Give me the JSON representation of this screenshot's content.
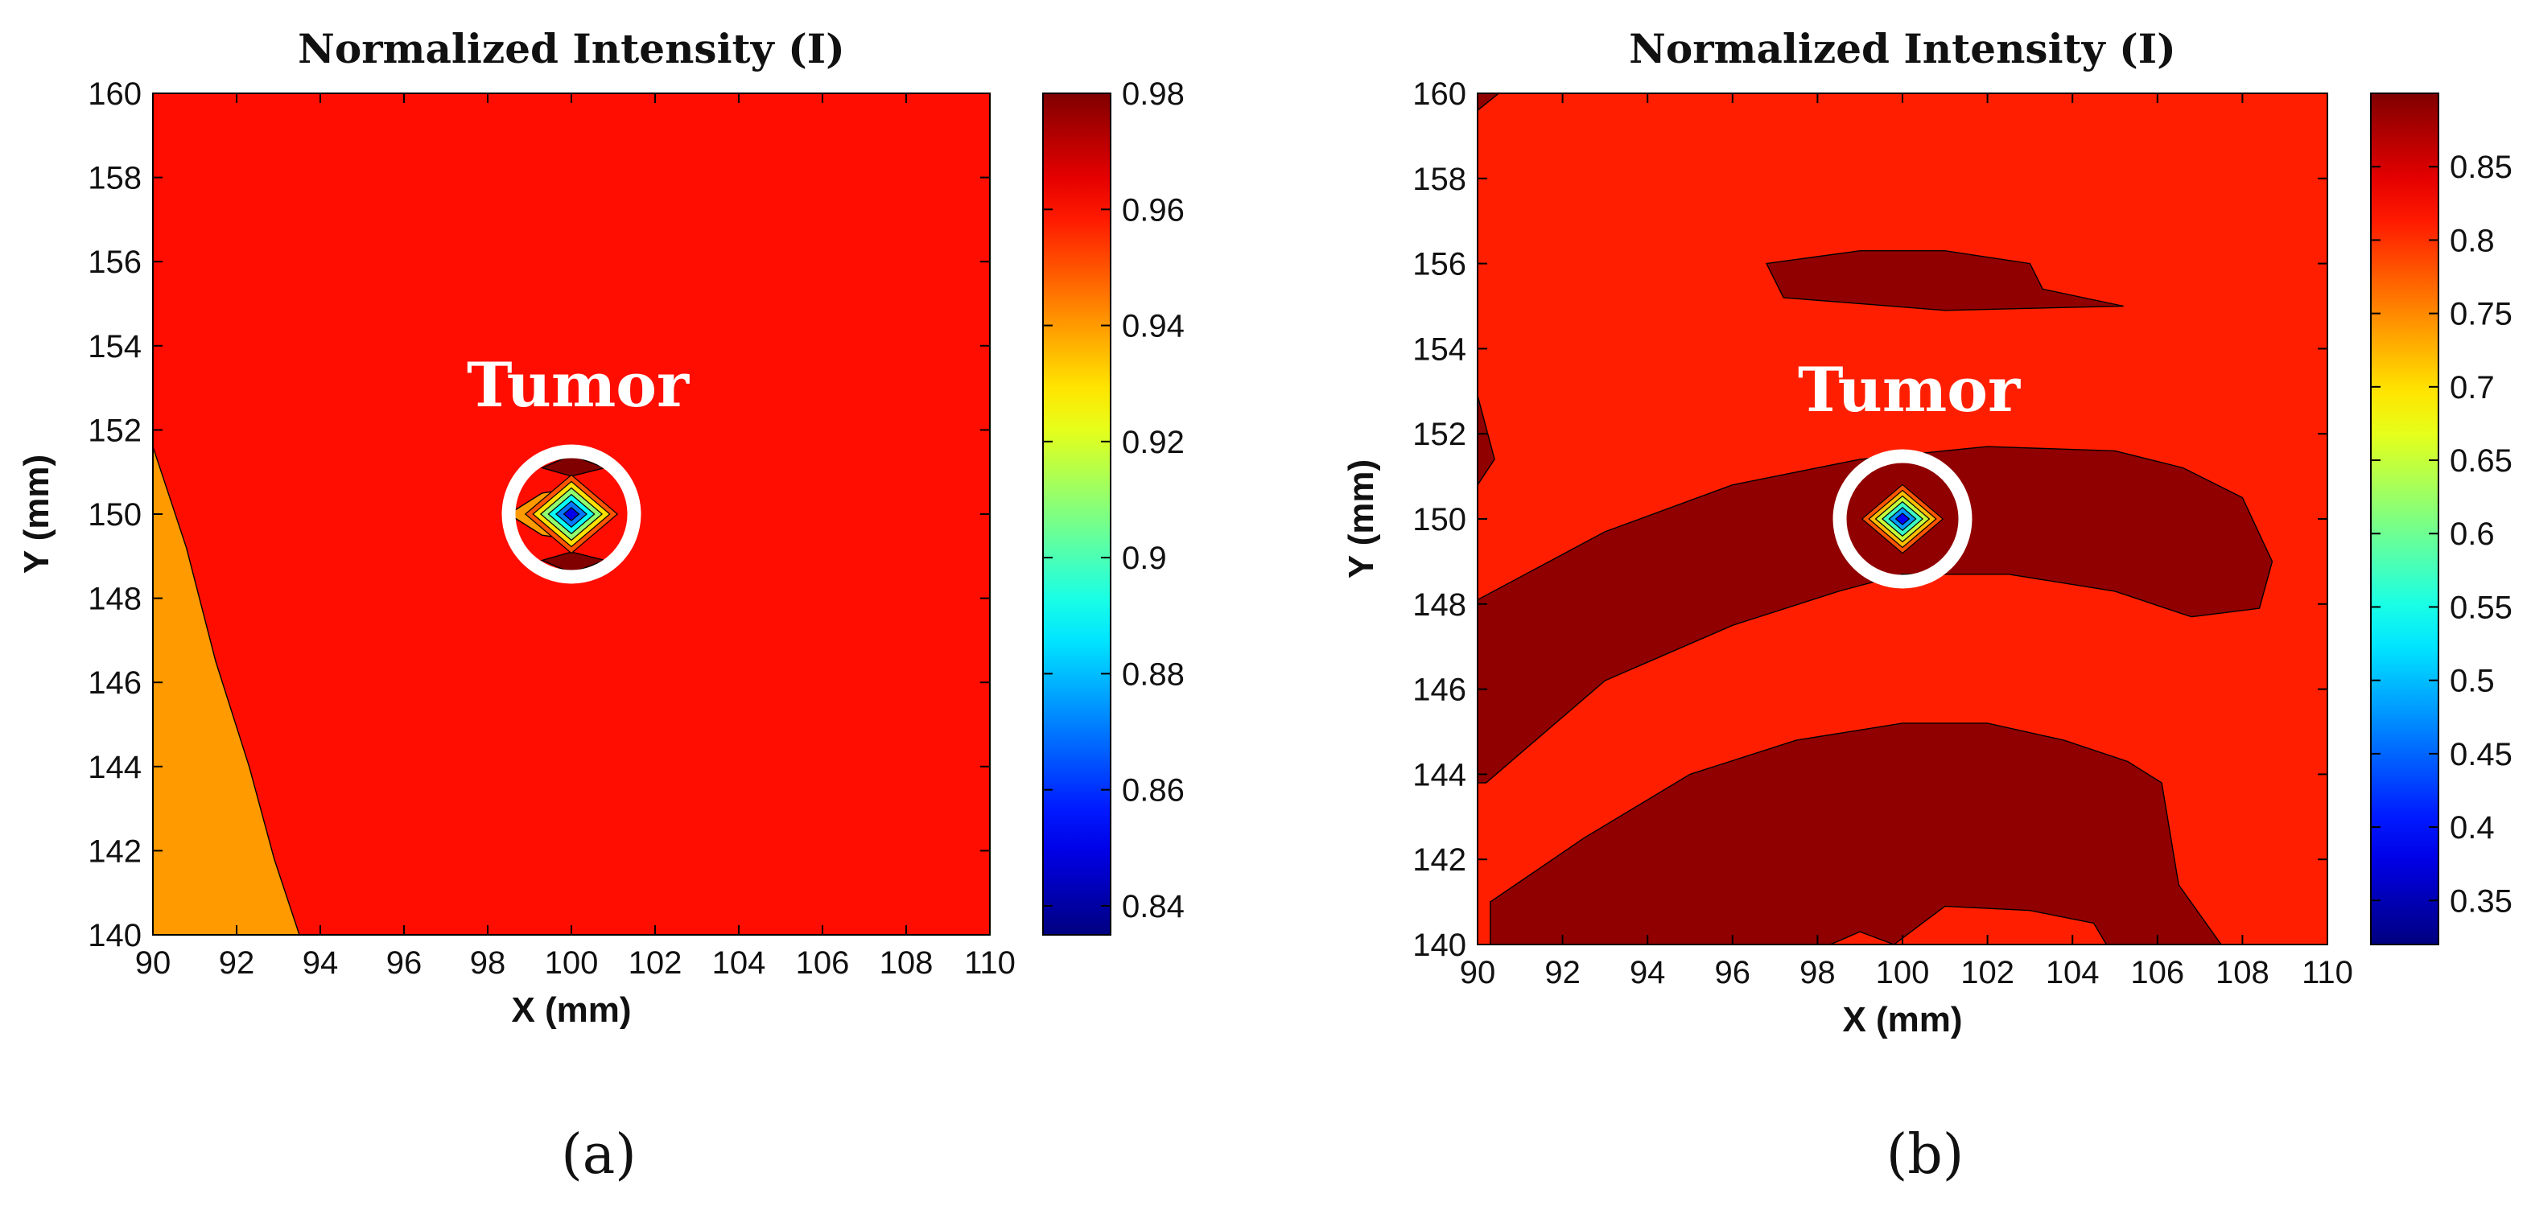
{
  "chart_data": [
    {
      "type": "heatmap",
      "panel": "a",
      "title": "Normalized Intensity (I)",
      "xlabel": "X (mm)",
      "ylabel": "Y (mm)",
      "xlim": [
        90,
        110
      ],
      "ylim": [
        140,
        160
      ],
      "xticks": [
        "90",
        "92",
        "94",
        "96",
        "98",
        "100",
        "102",
        "104",
        "106",
        "108",
        "110"
      ],
      "yticks": [
        "140",
        "142",
        "144",
        "146",
        "148",
        "150",
        "152",
        "154",
        "156",
        "158",
        "160"
      ],
      "colorbar": {
        "min": 0.835,
        "max": 0.98,
        "ticks": [
          "0.84",
          "0.86",
          "0.88",
          "0.9",
          "0.92",
          "0.94",
          "0.96",
          "0.98"
        ]
      },
      "background_level": 0.96,
      "regions": [
        {
          "name": "low-left-region",
          "level": 0.94,
          "points": [
            [
              90,
              151.6
            ],
            [
              90.8,
              149.2
            ],
            [
              91.5,
              146.5
            ],
            [
              92.3,
              144
            ],
            [
              92.9,
              141.8
            ],
            [
              93.5,
              140
            ],
            [
              90,
              140
            ]
          ]
        },
        {
          "name": "tumor-halo-left",
          "level": 0.94,
          "points": [
            [
              98.5,
              150
            ],
            [
              99.3,
              150.5
            ],
            [
              100,
              150.6
            ],
            [
              100,
              149.4
            ],
            [
              99.3,
              149.5
            ]
          ]
        },
        {
          "name": "tumor-top-lobe",
          "level": 0.98,
          "points": [
            [
              99.3,
              151.1
            ],
            [
              100,
              151.4
            ],
            [
              100.8,
              151.1
            ],
            [
              100,
              150.9
            ]
          ]
        },
        {
          "name": "tumor-bottom-lobe",
          "level": 0.98,
          "points": [
            [
              99.3,
              148.9
            ],
            [
              100,
              148.6
            ],
            [
              100.8,
              148.9
            ],
            [
              100,
              149.1
            ]
          ]
        }
      ],
      "tumor": {
        "x": 100,
        "y": 150,
        "label": "Tumor",
        "levels": [
          0.95,
          0.93,
          0.91,
          0.89,
          0.87,
          0.85
        ],
        "base_radius": 1.1
      },
      "caption": "(a)"
    },
    {
      "type": "heatmap",
      "panel": "b",
      "title": "Normalized Intensity (I)",
      "xlabel": "X (mm)",
      "ylabel": "Y (mm)",
      "xlim": [
        90,
        110
      ],
      "ylim": [
        140,
        160
      ],
      "xticks": [
        "90",
        "92",
        "94",
        "96",
        "98",
        "100",
        "102",
        "104",
        "106",
        "108",
        "110"
      ],
      "yticks": [
        "140",
        "142",
        "144",
        "146",
        "148",
        "150",
        "152",
        "154",
        "156",
        "158",
        "160"
      ],
      "colorbar": {
        "min": 0.32,
        "max": 0.9,
        "ticks": [
          "0.35",
          "0.4",
          "0.45",
          "0.5",
          "0.55",
          "0.6",
          "0.65",
          "0.7",
          "0.75",
          "0.8",
          "0.85"
        ]
      },
      "background_level": 0.81,
      "regions": [
        {
          "name": "upper-band",
          "level": 0.89,
          "points": [
            [
              96.8,
              156
            ],
            [
              99,
              156.3
            ],
            [
              101,
              156.3
            ],
            [
              103,
              156
            ],
            [
              103.3,
              155.4
            ],
            [
              105.2,
              155
            ],
            [
              101,
              154.9
            ],
            [
              97.2,
              155.2
            ]
          ]
        },
        {
          "name": "middle-band",
          "level": 0.89,
          "points": [
            [
              90,
              148.1
            ],
            [
              93,
              149.7
            ],
            [
              96,
              150.8
            ],
            [
              99,
              151.4
            ],
            [
              102,
              151.7
            ],
            [
              105,
              151.6
            ],
            [
              106.6,
              151.2
            ],
            [
              108,
              150.5
            ],
            [
              108.7,
              149
            ],
            [
              108.4,
              147.9
            ],
            [
              106.8,
              147.7
            ],
            [
              105,
              148.3
            ],
            [
              102.5,
              148.7
            ],
            [
              100,
              148.7
            ],
            [
              98.5,
              148.3
            ],
            [
              96,
              147.5
            ],
            [
              93,
              146.2
            ],
            [
              90.2,
              143.8
            ],
            [
              90,
              143.8
            ]
          ]
        },
        {
          "name": "lower-band",
          "level": 0.89,
          "points": [
            [
              90.3,
              141
            ],
            [
              92.5,
              142.5
            ],
            [
              95,
              144
            ],
            [
              97.5,
              144.8
            ],
            [
              100,
              145.2
            ],
            [
              102,
              145.2
            ],
            [
              103.8,
              144.8
            ],
            [
              105.3,
              144.3
            ],
            [
              106.1,
              143.8
            ],
            [
              106.5,
              141.4
            ],
            [
              107.5,
              140
            ],
            [
              104.8,
              140
            ],
            [
              104.5,
              140.5
            ],
            [
              103,
              140.8
            ],
            [
              101,
              140.9
            ],
            [
              99.8,
              140
            ],
            [
              99,
              140.3
            ],
            [
              98.3,
              140
            ],
            [
              90.3,
              140
            ]
          ]
        },
        {
          "name": "left-edge-sliver",
          "level": 0.89,
          "points": [
            [
              90,
              152.9
            ],
            [
              90.4,
              151.4
            ],
            [
              90,
              150.8
            ]
          ]
        },
        {
          "name": "top-left-corner-sliver",
          "level": 0.89,
          "points": [
            [
              90,
              160
            ],
            [
              90.5,
              160
            ],
            [
              90,
              159.6
            ]
          ]
        }
      ],
      "tumor": {
        "x": 100,
        "y": 150,
        "label": "Tumor",
        "levels": [
          0.78,
          0.72,
          0.65,
          0.57,
          0.48,
          0.39
        ],
        "base_radius": 0.95
      },
      "caption": "(b)"
    }
  ]
}
